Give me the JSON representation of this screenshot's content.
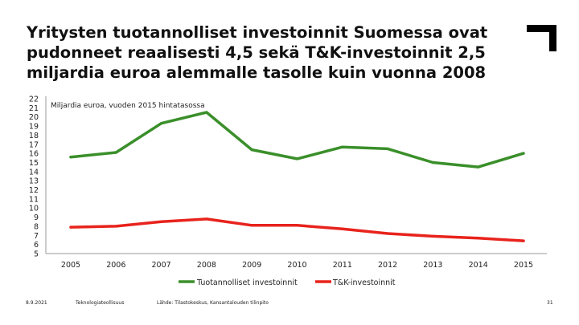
{
  "slide": {
    "title": "Yritysten tuotannolliset investoinnit Suomessa ovat pudonneet reaalisesti 4,5 sekä T&K-investoinnit 2,5 miljardia euroa alemmalle tasolle kuin vuonna 2008"
  },
  "footer": {
    "date": "8.9.2021",
    "org": "Teknologiateollisuus",
    "source": "Lähde: Tilastokeskus, Kansantalouden tilinpito",
    "page": "31"
  },
  "colors": {
    "production_series": "#3a8f2a",
    "rd_series": "#e8231c",
    "axis": "#9a9a9a",
    "text": "#111111"
  },
  "chart_data": {
    "type": "line",
    "title": "",
    "subtitle": "Miljardia euroa, vuoden 2015 hintatasossa",
    "xlabel": "",
    "ylabel": "",
    "categories": [
      "2005",
      "2006",
      "2007",
      "2008",
      "2009",
      "2010",
      "2011",
      "2012",
      "2013",
      "2014",
      "2015"
    ],
    "yticks": [
      "5",
      "6",
      "7",
      "8",
      "9",
      "10",
      "11",
      "12",
      "13",
      "14",
      "15",
      "16",
      "17",
      "18",
      "19",
      "20",
      "21",
      "22"
    ],
    "ylim": [
      5,
      22
    ],
    "grid": false,
    "legend_position": "bottom",
    "series": [
      {
        "name": "Tuotannolliset investoinnit",
        "color": "#3a8f2a",
        "values": [
          15.6,
          16.1,
          19.3,
          20.5,
          16.4,
          15.4,
          16.7,
          16.5,
          15.0,
          14.5,
          16.0
        ]
      },
      {
        "name": "T&K-investoinnit",
        "color": "#e8231c",
        "values": [
          7.9,
          8.0,
          8.5,
          8.8,
          8.1,
          8.1,
          7.7,
          7.2,
          6.9,
          6.7,
          6.4
        ]
      }
    ]
  }
}
